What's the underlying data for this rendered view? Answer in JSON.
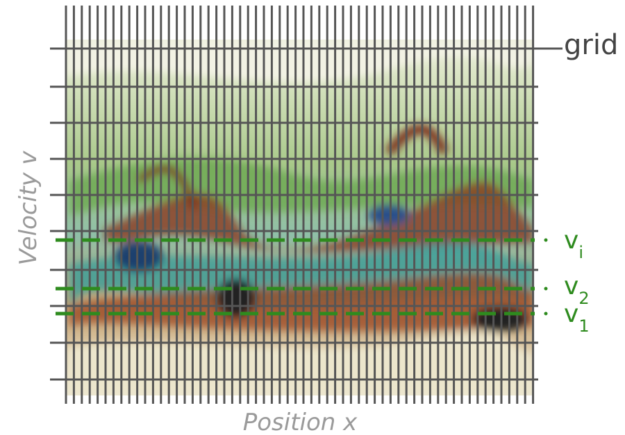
{
  "labels": {
    "grid": "grid",
    "y_axis": "Velocity v",
    "x_axis": "Position x"
  },
  "lines": [
    {
      "symbol": "v",
      "subscript": "i"
    },
    {
      "symbol": "v",
      "subscript": "2"
    },
    {
      "symbol": "v",
      "subscript": "1"
    }
  ]
}
